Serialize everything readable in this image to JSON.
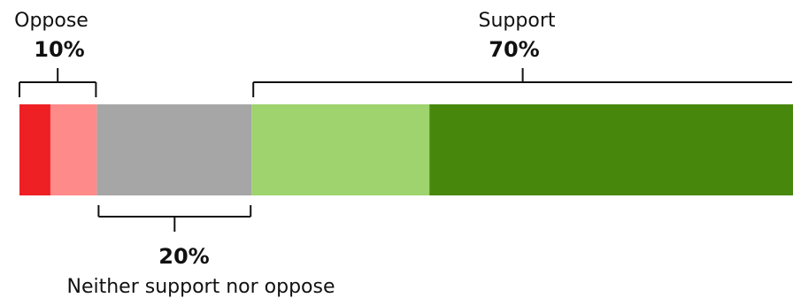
{
  "chart_data": {
    "type": "bar",
    "orientation": "horizontal-stacked",
    "title": "",
    "xlabel": "",
    "ylabel": "",
    "xlim": [
      0,
      100
    ],
    "segments": [
      {
        "key": "strongly_oppose",
        "value": 4,
        "color": "#ee2024"
      },
      {
        "key": "somewhat_oppose",
        "value": 6,
        "color": "#ff8a8a"
      },
      {
        "key": "neither",
        "value": 20,
        "color": "#a6a6a6"
      },
      {
        "key": "somewhat_support",
        "value": 23,
        "color": "#9ed36d"
      },
      {
        "key": "strongly_support",
        "value": 47,
        "color": "#47870c"
      }
    ],
    "groups": [
      {
        "name": "Oppose",
        "pct_label": "10%",
        "value": 10,
        "segments": [
          0,
          1
        ],
        "position": "above"
      },
      {
        "name": "Neither support nor oppose",
        "pct_label": "20%",
        "value": 20,
        "segments": [
          2
        ],
        "position": "below"
      },
      {
        "name": "Support",
        "pct_label": "70%",
        "value": 70,
        "segments": [
          3,
          4
        ],
        "position": "above"
      }
    ]
  }
}
